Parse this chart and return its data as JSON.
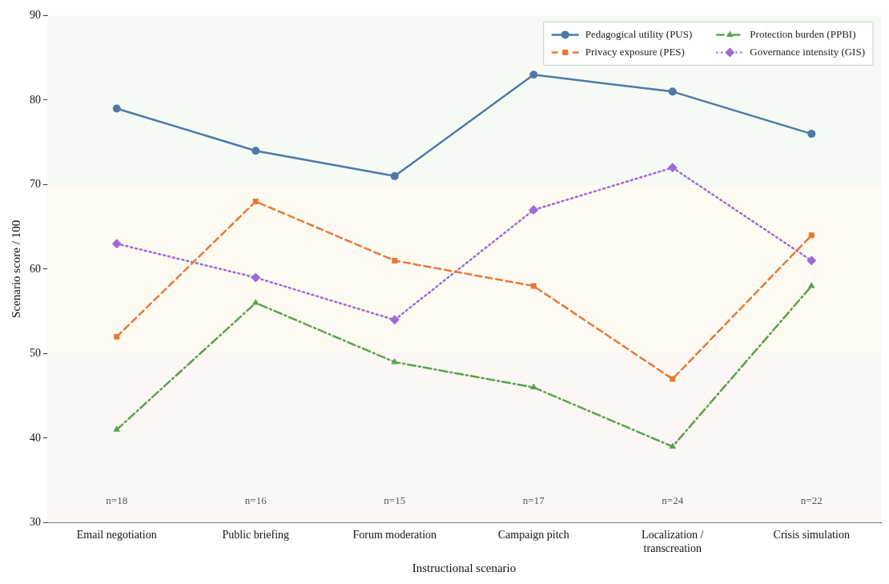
{
  "chart_data": {
    "type": "line",
    "xlabel": "Instructional scenario",
    "ylabel": "Scenario score / 100",
    "categories": [
      "Email negotiation",
      "Public briefing",
      "Forum moderation",
      "Campaign pitch",
      "Localization / transcreation",
      "Crisis simulation"
    ],
    "series": [
      {
        "name": "Pedagogical utility (PUS)",
        "color": "#4e79a7",
        "marker": "circle",
        "line_style": "solid",
        "values": [
          79,
          74,
          71,
          83,
          81,
          76
        ]
      },
      {
        "name": "Privacy exposure (PES)",
        "color": "#e8793a",
        "marker": "square",
        "line_style": "dashed",
        "values": [
          52,
          68,
          61,
          58,
          47,
          64
        ]
      },
      {
        "name": "Protection burden (PPBI)",
        "color": "#59a14f",
        "marker": "triangle",
        "line_style": "dashdot",
        "values": [
          41,
          56,
          49,
          46,
          39,
          58
        ]
      },
      {
        "name": "Governance intensity (GIS)",
        "color": "#9d6bd6",
        "marker": "diamond",
        "line_style": "dotted",
        "values": [
          63,
          59,
          54,
          67,
          72,
          61
        ]
      }
    ],
    "ylim": [
      30,
      90
    ],
    "yticks": [
      30,
      40,
      50,
      60,
      70,
      80,
      90
    ],
    "grid": "y",
    "legend": "top right",
    "bands": [
      {
        "axis": "y",
        "from": 30,
        "to": 50,
        "color": "#fcf6f4"
      },
      {
        "axis": "y",
        "from": 50,
        "to": 70,
        "color": "#fdfbf1"
      },
      {
        "axis": "y",
        "from": 70,
        "to": 90,
        "color": "#f6faf5"
      }
    ],
    "annotations": [
      "n=18",
      "n=16",
      "n=15",
      "n=17",
      "n=24",
      "n=22"
    ]
  }
}
